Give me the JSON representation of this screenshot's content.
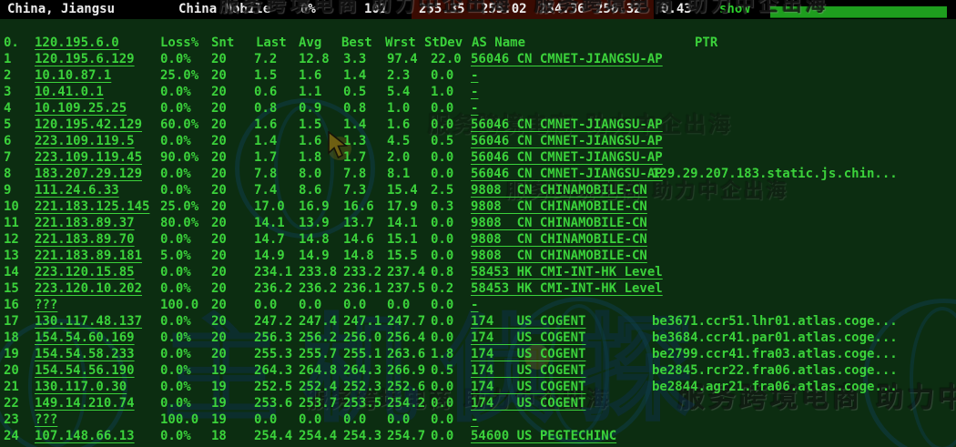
{
  "topbar": {
    "location": "China, Jiangsu",
    "isp": "China Mobile",
    "loss": "0%",
    "sent": "101",
    "values": [
      "255.35",
      "255.02",
      "254.36",
      "256.32"
    ],
    "stdev": "0.43",
    "show_label": "show"
  },
  "table": {
    "header": {
      "rank": "0.",
      "source_ip": "120.195.6.0",
      "loss": "Loss%",
      "snt": "Snt",
      "last": "Last",
      "avg": "Avg",
      "best": "Best",
      "wrst": "Wrst",
      "stdev": "StDev",
      "asname": "AS Name",
      "ptr": "PTR"
    },
    "hops": [
      {
        "rank": "1",
        "ip": "120.195.6.129",
        "loss": "0.0%",
        "snt": "20",
        "last": "7.2",
        "avg": "12.8",
        "best": "3.3",
        "wrst": "97.4",
        "stdev": "22.0",
        "asname": "56046 CN CMNET-JIANGSU-AP",
        "ptr": ""
      },
      {
        "rank": "2",
        "ip": "10.10.87.1",
        "loss": "25.0%",
        "snt": "20",
        "last": "1.5",
        "avg": "1.6",
        "best": "1.4",
        "wrst": "2.3",
        "stdev": "0.0",
        "asname": "-",
        "ptr": ""
      },
      {
        "rank": "3",
        "ip": "10.41.0.1",
        "loss": "0.0%",
        "snt": "20",
        "last": "0.6",
        "avg": "1.1",
        "best": "0.5",
        "wrst": "5.4",
        "stdev": "1.0",
        "asname": "-",
        "ptr": ""
      },
      {
        "rank": "4",
        "ip": "10.109.25.25",
        "loss": "0.0%",
        "snt": "20",
        "last": "0.8",
        "avg": "0.9",
        "best": "0.8",
        "wrst": "1.0",
        "stdev": "0.0",
        "asname": "-",
        "ptr": ""
      },
      {
        "rank": "5",
        "ip": "120.195.42.129",
        "loss": "60.0%",
        "snt": "20",
        "last": "1.6",
        "avg": "1.5",
        "best": "1.4",
        "wrst": "1.6",
        "stdev": "0.0",
        "asname": "56046 CN CMNET-JIANGSU-AP",
        "ptr": ""
      },
      {
        "rank": "6",
        "ip": "223.109.119.5",
        "loss": "0.0%",
        "snt": "20",
        "last": "1.4",
        "avg": "1.6",
        "best": "1.3",
        "wrst": "4.5",
        "stdev": "0.5",
        "asname": "56046 CN CMNET-JIANGSU-AP",
        "ptr": ""
      },
      {
        "rank": "7",
        "ip": "223.109.119.45",
        "loss": "90.0%",
        "snt": "20",
        "last": "1.7",
        "avg": "1.8",
        "best": "1.7",
        "wrst": "2.0",
        "stdev": "0.0",
        "asname": "56046 CN CMNET-JIANGSU-AP",
        "ptr": ""
      },
      {
        "rank": "8",
        "ip": "183.207.29.129",
        "loss": "0.0%",
        "snt": "20",
        "last": "7.8",
        "avg": "8.0",
        "best": "7.8",
        "wrst": "8.1",
        "stdev": "0.0",
        "asname": "56046 CN CMNET-JIANGSU-AP",
        "ptr": "129.29.207.183.static.js.chin..."
      },
      {
        "rank": "9",
        "ip": "111.24.6.33",
        "loss": "0.0%",
        "snt": "20",
        "last": "7.4",
        "avg": "8.6",
        "best": "7.3",
        "wrst": "15.4",
        "stdev": "2.5",
        "asname": "9808  CN CHINAMOBILE-CN",
        "ptr": ""
      },
      {
        "rank": "10",
        "ip": "221.183.125.145",
        "loss": "25.0%",
        "snt": "20",
        "last": "17.0",
        "avg": "16.9",
        "best": "16.6",
        "wrst": "17.9",
        "stdev": "0.3",
        "asname": "9808  CN CHINAMOBILE-CN",
        "ptr": ""
      },
      {
        "rank": "11",
        "ip": "221.183.89.37",
        "loss": "80.0%",
        "snt": "20",
        "last": "14.1",
        "avg": "13.9",
        "best": "13.7",
        "wrst": "14.1",
        "stdev": "0.0",
        "asname": "9808  CN CHINAMOBILE-CN",
        "ptr": ""
      },
      {
        "rank": "12",
        "ip": "221.183.89.70",
        "loss": "0.0%",
        "snt": "20",
        "last": "14.7",
        "avg": "14.8",
        "best": "14.6",
        "wrst": "15.1",
        "stdev": "0.0",
        "asname": "9808  CN CHINAMOBILE-CN",
        "ptr": ""
      },
      {
        "rank": "13",
        "ip": "221.183.89.181",
        "loss": "5.0%",
        "snt": "20",
        "last": "14.9",
        "avg": "14.9",
        "best": "14.8",
        "wrst": "15.5",
        "stdev": "0.0",
        "asname": "9808  CN CHINAMOBILE-CN",
        "ptr": ""
      },
      {
        "rank": "14",
        "ip": "223.120.15.85",
        "loss": "0.0%",
        "snt": "20",
        "last": "234.1",
        "avg": "233.8",
        "best": "233.2",
        "wrst": "237.4",
        "stdev": "0.8",
        "asname": "58453 HK CMI-INT-HK Level",
        "ptr": ""
      },
      {
        "rank": "15",
        "ip": "223.120.10.202",
        "loss": "0.0%",
        "snt": "20",
        "last": "236.2",
        "avg": "236.2",
        "best": "236.1",
        "wrst": "237.5",
        "stdev": "0.2",
        "asname": "58453 HK CMI-INT-HK Level",
        "ptr": ""
      },
      {
        "rank": "16",
        "ip": "???",
        "loss": "100.0",
        "snt": "20",
        "last": "0.0",
        "avg": "0.0",
        "best": "0.0",
        "wrst": "0.0",
        "stdev": "0.0",
        "asname": "-",
        "ptr": ""
      },
      {
        "rank": "17",
        "ip": "130.117.48.137",
        "loss": "0.0%",
        "snt": "20",
        "last": "247.2",
        "avg": "247.4",
        "best": "247.1",
        "wrst": "247.7",
        "stdev": "0.0",
        "asname": "174   US COGENT",
        "ptr": "be3671.ccr51.lhr01.atlas.coge..."
      },
      {
        "rank": "18",
        "ip": "154.54.60.169",
        "loss": "0.0%",
        "snt": "20",
        "last": "256.3",
        "avg": "256.2",
        "best": "256.0",
        "wrst": "256.4",
        "stdev": "0.0",
        "asname": "174   US COGENT",
        "ptr": "be3684.ccr41.par01.atlas.coge..."
      },
      {
        "rank": "19",
        "ip": "154.54.58.233",
        "loss": "0.0%",
        "snt": "20",
        "last": "255.3",
        "avg": "255.7",
        "best": "255.1",
        "wrst": "263.6",
        "stdev": "1.8",
        "asname": "174   US COGENT",
        "ptr": "be2799.ccr41.fra03.atlas.coge..."
      },
      {
        "rank": "20",
        "ip": "154.54.56.190",
        "loss": "0.0%",
        "snt": "19",
        "last": "264.3",
        "avg": "264.8",
        "best": "264.3",
        "wrst": "266.9",
        "stdev": "0.5",
        "asname": "174   US COGENT",
        "ptr": "be2845.rcr22.fra06.atlas.coge..."
      },
      {
        "rank": "21",
        "ip": "130.117.0.30",
        "loss": "0.0%",
        "snt": "19",
        "last": "252.5",
        "avg": "252.4",
        "best": "252.3",
        "wrst": "252.6",
        "stdev": "0.0",
        "asname": "174   US COGENT",
        "ptr": "be2844.agr21.fra06.atlas.coge..."
      },
      {
        "rank": "22",
        "ip": "149.14.210.74",
        "loss": "0.0%",
        "snt": "19",
        "last": "253.6",
        "avg": "253.7",
        "best": "253.5",
        "wrst": "254.2",
        "stdev": "0.0",
        "asname": "174   US COGENT",
        "ptr": ""
      },
      {
        "rank": "23",
        "ip": "???",
        "loss": "100.0",
        "snt": "19",
        "last": "0.0",
        "avg": "0.0",
        "best": "0.0",
        "wrst": "0.0",
        "stdev": "0.0",
        "asname": "-",
        "ptr": ""
      },
      {
        "rank": "24",
        "ip": "107.148.66.13",
        "loss": "0.0%",
        "snt": "18",
        "last": "254.4",
        "avg": "254.4",
        "best": "254.3",
        "wrst": "254.7",
        "stdev": "0.0",
        "asname": "54600 US PEGTECHINC",
        "ptr": ""
      }
    ]
  },
  "watermark": {
    "slogan": "服务跨境电商 助力中企出海",
    "slogan_double": "服务跨境电商 助力中企出海  服务跨境电商 助力中企出海",
    "brand": "主机侦探"
  },
  "colors": {
    "background": "#0c2d11",
    "text_green": "#3bd23b",
    "topbar_bg": "#000000",
    "topbar_text": "#ececec",
    "highlight_red": "#3a0b02",
    "show_green": "#2bd32b",
    "progress_green": "#1e9e1e"
  }
}
